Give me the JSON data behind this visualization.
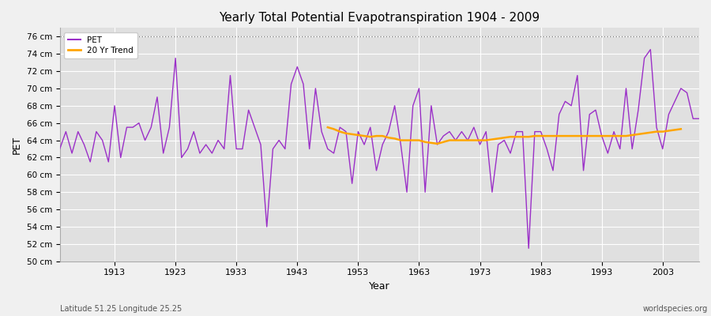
{
  "title": "Yearly Total Potential Evapotranspiration 1904 - 2009",
  "xlabel": "Year",
  "ylabel": "PET",
  "subtitle_left": "Latitude 51.25 Longitude 25.25",
  "subtitle_right": "worldspecies.org",
  "ylim": [
    50,
    77
  ],
  "ytick_labels": [
    "50 cm",
    "52 cm",
    "54 cm",
    "56 cm",
    "58 cm",
    "60 cm",
    "62 cm",
    "64 cm",
    "66 cm",
    "68 cm",
    "70 cm",
    "72 cm",
    "74 cm",
    "76 cm"
  ],
  "ytick_values": [
    50,
    52,
    54,
    56,
    58,
    60,
    62,
    64,
    66,
    68,
    70,
    72,
    74,
    76
  ],
  "xtick_years": [
    1913,
    1923,
    1933,
    1943,
    1953,
    1963,
    1973,
    1983,
    1993,
    2003
  ],
  "pet_color": "#9B30C8",
  "trend_color": "#FFA500",
  "fig_facecolor": "#f0f0f0",
  "plot_facecolor": "#e0e0e0",
  "years": [
    1904,
    1905,
    1906,
    1907,
    1908,
    1909,
    1910,
    1911,
    1912,
    1913,
    1914,
    1915,
    1916,
    1917,
    1918,
    1919,
    1920,
    1921,
    1922,
    1923,
    1924,
    1925,
    1926,
    1927,
    1928,
    1929,
    1930,
    1931,
    1932,
    1933,
    1934,
    1935,
    1936,
    1937,
    1938,
    1939,
    1940,
    1941,
    1942,
    1943,
    1944,
    1945,
    1946,
    1947,
    1948,
    1949,
    1950,
    1951,
    1952,
    1953,
    1954,
    1955,
    1956,
    1957,
    1958,
    1959,
    1960,
    1961,
    1962,
    1963,
    1964,
    1965,
    1966,
    1967,
    1968,
    1969,
    1970,
    1971,
    1972,
    1973,
    1974,
    1975,
    1976,
    1977,
    1978,
    1979,
    1980,
    1981,
    1982,
    1983,
    1984,
    1985,
    1986,
    1987,
    1988,
    1989,
    1990,
    1991,
    1992,
    1993,
    1994,
    1995,
    1996,
    1997,
    1998,
    1999,
    2000,
    2001,
    2002,
    2003,
    2004,
    2005,
    2006,
    2007,
    2008,
    2009
  ],
  "pet_values": [
    63.0,
    65.0,
    62.5,
    65.0,
    63.5,
    61.5,
    65.0,
    64.0,
    61.5,
    68.0,
    62.0,
    65.5,
    65.5,
    66.0,
    64.0,
    65.5,
    69.0,
    62.5,
    65.5,
    73.5,
    62.0,
    63.0,
    65.0,
    62.5,
    63.5,
    62.5,
    64.0,
    63.0,
    71.5,
    63.0,
    63.0,
    67.5,
    65.5,
    63.5,
    54.0,
    63.0,
    64.0,
    63.0,
    70.5,
    72.5,
    70.5,
    63.0,
    70.0,
    65.0,
    63.0,
    62.5,
    65.5,
    65.0,
    59.0,
    65.0,
    63.5,
    65.5,
    60.5,
    63.5,
    65.0,
    68.0,
    63.5,
    58.0,
    68.0,
    70.0,
    58.0,
    68.0,
    63.5,
    64.5,
    65.0,
    64.0,
    65.0,
    64.0,
    65.5,
    63.5,
    65.0,
    58.0,
    63.5,
    64.0,
    62.5,
    65.0,
    65.0,
    51.5,
    65.0,
    65.0,
    63.0,
    60.5,
    67.0,
    68.5,
    68.0,
    71.5,
    60.5,
    67.0,
    67.5,
    64.5,
    62.5,
    65.0,
    63.0,
    70.0,
    63.0,
    67.5,
    73.5,
    74.5,
    65.5,
    63.0,
    67.0,
    68.5,
    70.0,
    69.5,
    66.5,
    66.5
  ],
  "trend_start_year": 1948,
  "trend_values": [
    65.5,
    65.3,
    65.0,
    64.8,
    64.7,
    64.6,
    64.5,
    64.4,
    64.5,
    64.5,
    64.3,
    64.2,
    64.0,
    64.0,
    64.0,
    64.0,
    63.8,
    63.7,
    63.6,
    63.8,
    64.0,
    64.0,
    64.0,
    64.0,
    64.0,
    64.0,
    64.0,
    64.1,
    64.2,
    64.3,
    64.4,
    64.4,
    64.4,
    64.4,
    64.5,
    64.5,
    64.5,
    64.5,
    64.5,
    64.5,
    64.5,
    64.5,
    64.5,
    64.5,
    64.5,
    64.5,
    64.5,
    64.5,
    64.5,
    64.5,
    64.6,
    64.7,
    64.8,
    64.9,
    65.0,
    65.0,
    65.1,
    65.2,
    65.3
  ]
}
